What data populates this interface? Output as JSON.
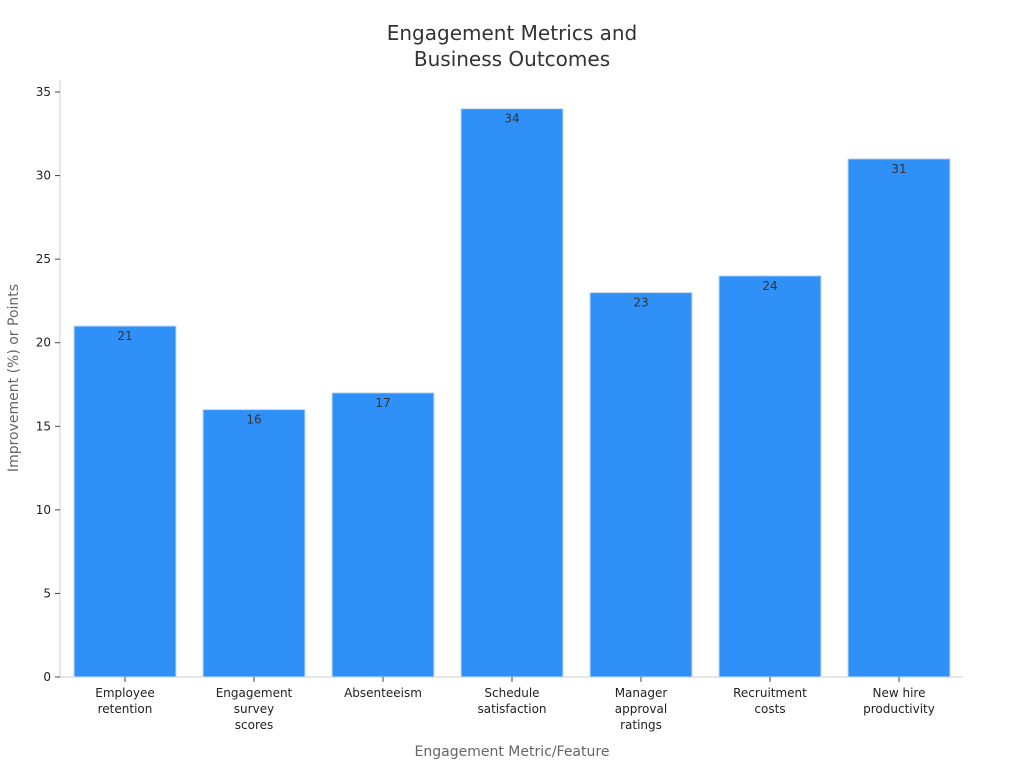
{
  "chart_data": {
    "type": "bar",
    "title": [
      "Engagement Metrics and",
      "Business Outcomes"
    ],
    "xlabel": "Engagement Metric/Feature",
    "ylabel": "Improvement (%) or Points",
    "categories": [
      [
        "Employee",
        "retention"
      ],
      [
        "Engagement",
        "survey",
        "scores"
      ],
      [
        "Absenteeism"
      ],
      [
        "Schedule",
        "satisfaction"
      ],
      [
        "Manager",
        "approval",
        "ratings"
      ],
      [
        "Recruitment",
        "costs"
      ],
      [
        "New hire",
        "productivity"
      ]
    ],
    "values": [
      21,
      16,
      17,
      34,
      23,
      24,
      31
    ],
    "ylim": [
      0,
      35
    ],
    "yticks": [
      0,
      5,
      10,
      15,
      20,
      25,
      30,
      35
    ],
    "grid": false,
    "legend": "none",
    "colors": {
      "bar": "#2f91f8",
      "bar_edge": "#c9d9ee",
      "axis": "#cccccc"
    }
  }
}
